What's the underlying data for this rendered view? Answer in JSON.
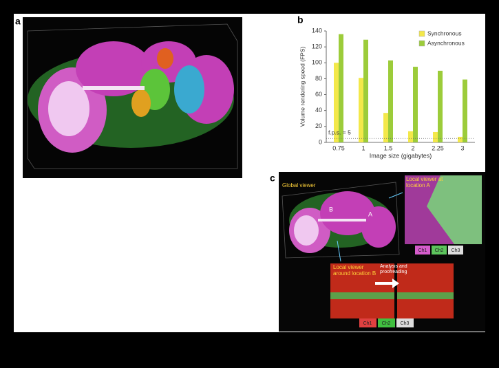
{
  "panel_labels": [
    "a",
    "b",
    "c"
  ],
  "chart_data": {
    "type": "bar",
    "ylabel": "Volume rendering speed (FPS)",
    "xlabel": "Image size (gigabytes)",
    "categories": [
      "0.75",
      "1",
      "1.5",
      "2",
      "2.25",
      "3"
    ],
    "series": [
      {
        "name": "Synchronous",
        "color": "#f3e84a",
        "values": [
          100,
          81,
          37,
          14,
          13,
          7
        ]
      },
      {
        "name": "Asynchronous",
        "color": "#9ccc3a",
        "values": [
          136,
          129,
          103,
          95,
          90,
          79
        ]
      }
    ],
    "ylim": [
      0,
      140
    ],
    "yticks": [
      0,
      20,
      40,
      60,
      80,
      100,
      120,
      140
    ],
    "annotation": {
      "text": "f.p.s. = 5",
      "value": 5
    },
    "legend": "upper right"
  },
  "panel_c": {
    "global": "Global viewer",
    "local_a": "Local viewer at location A",
    "local_b": "Local viewer around location B",
    "arrow": "Analysis and proofreading",
    "marker_a": "A",
    "marker_b": "B",
    "channels_a": [
      "Ch1",
      "Ch2",
      "Ch3"
    ],
    "channels_b": [
      "Ch1",
      "Ch2",
      "Ch3"
    ]
  }
}
